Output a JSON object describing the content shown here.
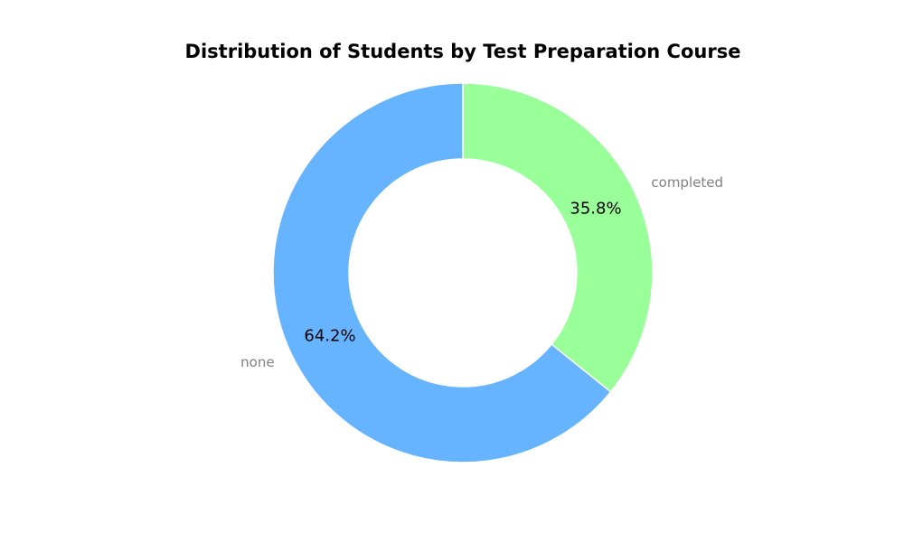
{
  "chart_data": {
    "type": "pie",
    "title": "Distribution of Students by Test Preparation Course",
    "categories": [
      "completed",
      "none"
    ],
    "values": [
      35.8,
      64.2
    ],
    "percent_labels": [
      "35.8%",
      "64.2%"
    ],
    "colors": [
      "#99ff99",
      "#66b3ff"
    ],
    "donut": true,
    "start_angle_deg": 90,
    "direction": "clockwise",
    "legend": "none"
  }
}
